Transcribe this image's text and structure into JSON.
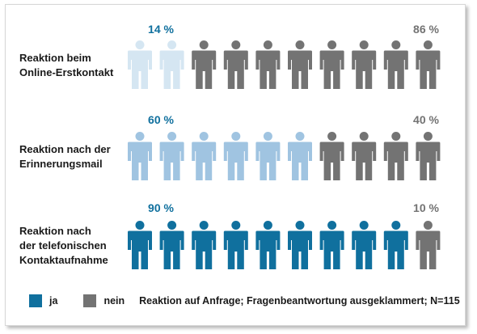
{
  "colors": {
    "yes": "#10709e",
    "no": "#737373",
    "yes_light_row1": "#d5e6f2",
    "yes_light_row2": "#a0c4e1"
  },
  "icon": "person-icon",
  "legend": {
    "yes_label": "ja",
    "no_label": "nein",
    "note": "Reaktion auf Anfrage; Fragenbeantwortung ausgeklammert; N=115"
  },
  "chart_data": {
    "type": "pictogram",
    "icons_per_row": 10,
    "rows": [
      {
        "label_lines": [
          "Reaktion beim",
          "Online-Erstkontakt"
        ],
        "yes_pct": 14,
        "no_pct": 86,
        "yes_text": "14 %",
        "no_text": "86 %",
        "yes_icons": 2
      },
      {
        "label_lines": [
          "Reaktion nach der",
          "Erinnerungsmail"
        ],
        "yes_pct": 60,
        "no_pct": 40,
        "yes_text": "60 %",
        "no_text": "40 %",
        "yes_icons": 6
      },
      {
        "label_lines": [
          "Reaktion nach",
          "der telefonischen",
          "Kontaktaufnahme"
        ],
        "yes_pct": 90,
        "no_pct": 10,
        "yes_text": "90 %",
        "no_text": "10 %",
        "yes_icons": 9
      }
    ]
  }
}
